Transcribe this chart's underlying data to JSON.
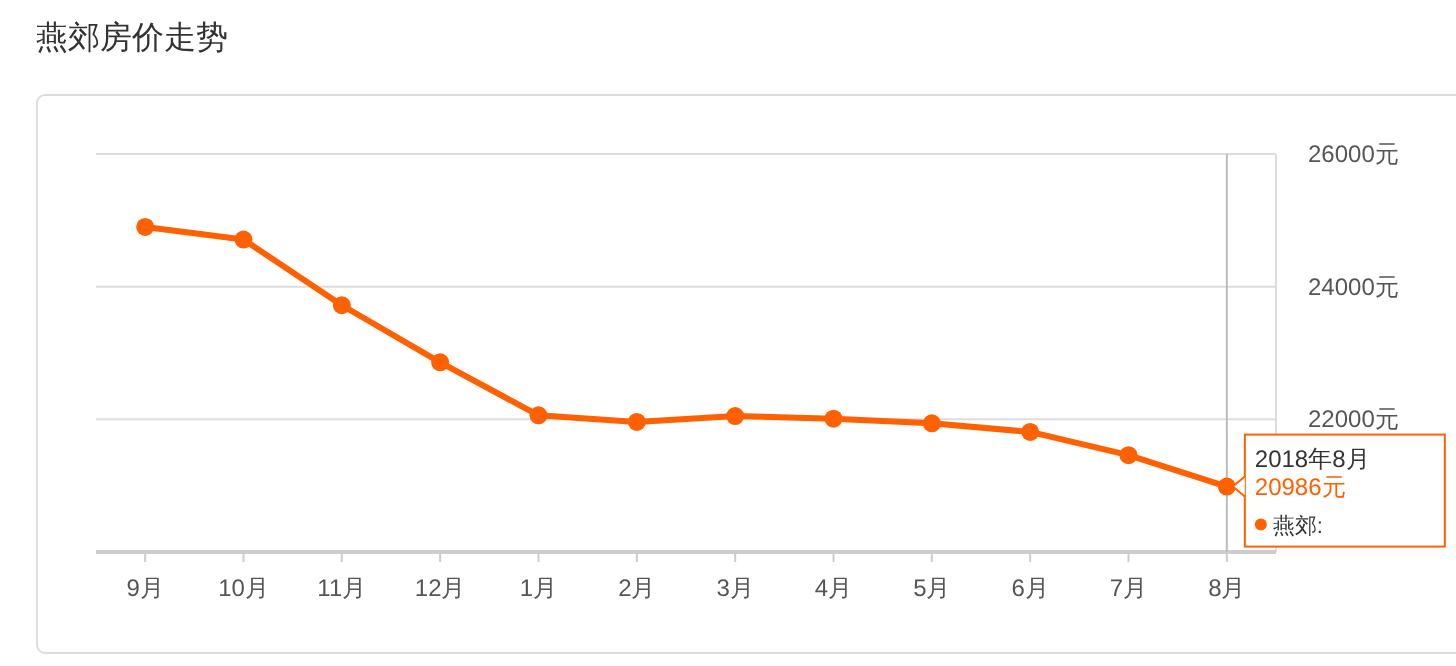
{
  "chart_data": {
    "type": "line",
    "title": "燕郊房价走势",
    "categories": [
      "9月",
      "10月",
      "11月",
      "12月",
      "1月",
      "2月",
      "3月",
      "4月",
      "5月",
      "6月",
      "7月",
      "8月"
    ],
    "series": [
      {
        "name": "燕郊:",
        "color": "#ff6000",
        "values": [
          24900,
          24710,
          23720,
          22860,
          22060,
          21960,
          22050,
          22010,
          21940,
          21810,
          21460,
          20986
        ],
        "value_labels": [
          null,
          null,
          null,
          null,
          null,
          null,
          null,
          null,
          null,
          null,
          null,
          "20986元"
        ]
      }
    ],
    "ylim": [
      20000,
      26000
    ],
    "yticks": [
      {
        "value": 20000,
        "label": null
      },
      {
        "value": 22000,
        "label": "22000元"
      },
      {
        "value": 24000,
        "label": "24000元"
      },
      {
        "value": 26000,
        "label": "26000元"
      }
    ],
    "annotations": [
      {
        "text": "2018年8月",
        "x": "8月",
        "y": 20986
      }
    ],
    "ref_lines": [
      {
        "axis": "x",
        "value": "8月",
        "color": "#bbbbbb"
      }
    ],
    "grid": "y",
    "marker": "circle",
    "line_style": "solid",
    "legend": "bottom right"
  }
}
